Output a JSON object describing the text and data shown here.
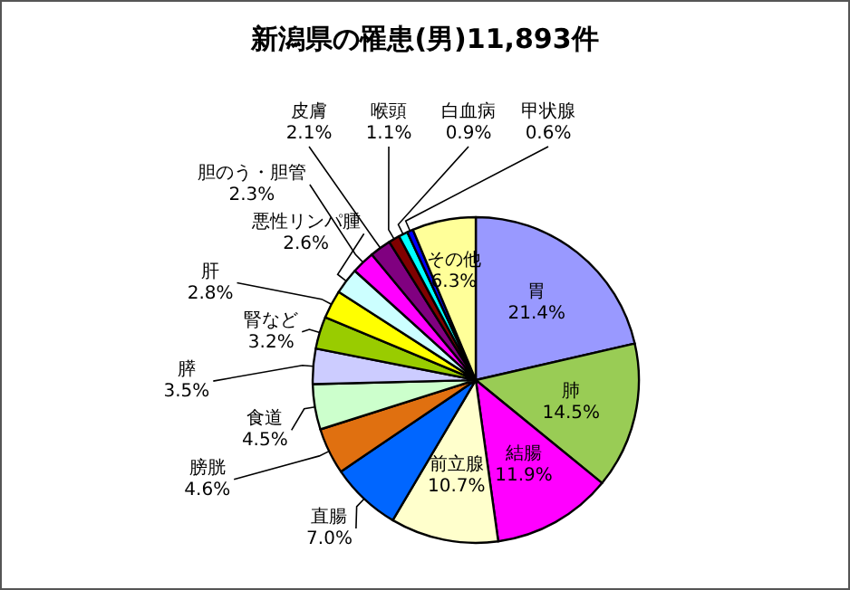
{
  "chart_data": {
    "type": "pie",
    "title": "新潟県の罹患(男)11,893件",
    "categories": [
      "胃",
      "肺",
      "結腸",
      "前立腺",
      "直腸",
      "膀胱",
      "食道",
      "膵",
      "腎など",
      "肝",
      "悪性リンパ腫",
      "胆のう・胆管",
      "皮膚",
      "喉頭",
      "白血病",
      "甲状腺",
      "その他"
    ],
    "values": [
      21.4,
      14.5,
      11.9,
      10.7,
      7.0,
      4.6,
      4.5,
      3.5,
      3.2,
      2.8,
      2.6,
      2.3,
      2.1,
      1.1,
      0.9,
      0.6,
      6.3
    ],
    "value_labels": [
      "21.4%",
      "14.5%",
      "11.9%",
      "10.7%",
      "7.0%",
      "4.6%",
      "4.5%",
      "3.5%",
      "3.2%",
      "2.8%",
      "2.6%",
      "2.3%",
      "2.1%",
      "1.1%",
      "0.9%",
      "0.6%",
      "6.3%"
    ],
    "colors": [
      "#9999ff",
      "#99cc55",
      "#ff00ff",
      "#ffffcc",
      "#0066ff",
      "#e07010",
      "#ccffcc",
      "#ccccff",
      "#99cc00",
      "#ffff00",
      "#ccffff",
      "#ff00ff",
      "#800080",
      "#800000",
      "#00ffff",
      "#0000ff",
      "#ffff99"
    ],
    "legend": false
  }
}
